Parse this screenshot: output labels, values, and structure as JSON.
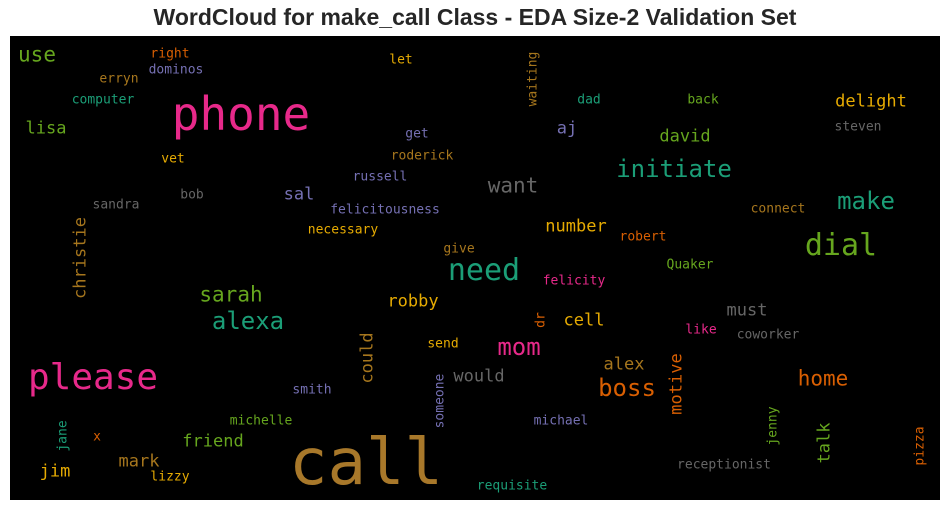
{
  "title": "WordCloud for make_call Class - EDA Size-2 Validation Set",
  "chart_data": {
    "type": "wordcloud",
    "background": "#000000",
    "words": [
      {
        "text": "call",
        "color": "#a8782a"
      },
      {
        "text": "phone",
        "color": "#e7298a"
      },
      {
        "text": "please",
        "color": "#e7298a"
      },
      {
        "text": "need",
        "color": "#1b9e77"
      },
      {
        "text": "dial",
        "color": "#66a61e"
      },
      {
        "text": "initiate",
        "color": "#1b9e77"
      },
      {
        "text": "mom",
        "color": "#e7298a"
      },
      {
        "text": "alexa",
        "color": "#1b9e77"
      },
      {
        "text": "boss",
        "color": "#d95f02"
      },
      {
        "text": "make",
        "color": "#1b9e77"
      },
      {
        "text": "sarah",
        "color": "#66a61e"
      },
      {
        "text": "home",
        "color": "#d95f02"
      },
      {
        "text": "want",
        "color": "#666666"
      },
      {
        "text": "use",
        "color": "#66a61e"
      },
      {
        "text": "delight",
        "color": "#e6ab02"
      },
      {
        "text": "david",
        "color": "#66a61e"
      },
      {
        "text": "christie",
        "color": "#a6761d"
      },
      {
        "text": "would",
        "color": "#666666"
      },
      {
        "text": "motive",
        "color": "#d95f02"
      },
      {
        "text": "could",
        "color": "#a6761d"
      },
      {
        "text": "talk",
        "color": "#66a61e"
      },
      {
        "text": "friend",
        "color": "#66a61e"
      },
      {
        "text": "mark",
        "color": "#a6761d"
      },
      {
        "text": "must",
        "color": "#666666"
      },
      {
        "text": "alex",
        "color": "#a6761d"
      },
      {
        "text": "cell",
        "color": "#e6ab02"
      },
      {
        "text": "robby",
        "color": "#e6ab02"
      },
      {
        "text": "lisa",
        "color": "#66a61e"
      },
      {
        "text": "aj",
        "color": "#7570b3"
      },
      {
        "text": "sal",
        "color": "#7570b3"
      },
      {
        "text": "jim",
        "color": "#e6ab02"
      },
      {
        "text": "number",
        "color": "#e6ab02"
      },
      {
        "text": "right",
        "color": "#d95f02"
      },
      {
        "text": "let",
        "color": "#e6ab02"
      },
      {
        "text": "erryn",
        "color": "#a6761d"
      },
      {
        "text": "dominos",
        "color": "#7570b3"
      },
      {
        "text": "computer",
        "color": "#1b9e77"
      },
      {
        "text": "waiting",
        "color": "#a6761d"
      },
      {
        "text": "dad",
        "color": "#1b9e77"
      },
      {
        "text": "back",
        "color": "#66a61e"
      },
      {
        "text": "get",
        "color": "#7570b3"
      },
      {
        "text": "steven",
        "color": "#666666"
      },
      {
        "text": "roderick",
        "color": "#a6761d"
      },
      {
        "text": "vet",
        "color": "#e6ab02"
      },
      {
        "text": "russell",
        "color": "#7570b3"
      },
      {
        "text": "bob",
        "color": "#666666"
      },
      {
        "text": "sandra",
        "color": "#666666"
      },
      {
        "text": "felicitousness",
        "color": "#7570b3"
      },
      {
        "text": "connect",
        "color": "#a6761d"
      },
      {
        "text": "necessary",
        "color": "#e6ab02"
      },
      {
        "text": "robert",
        "color": "#d95f02"
      },
      {
        "text": "give",
        "color": "#a6761d"
      },
      {
        "text": "Quaker",
        "color": "#66a61e"
      },
      {
        "text": "felicity",
        "color": "#e7298a"
      },
      {
        "text": "dr",
        "color": "#d95f02"
      },
      {
        "text": "like",
        "color": "#e7298a"
      },
      {
        "text": "coworker",
        "color": "#666666"
      },
      {
        "text": "send",
        "color": "#e6ab02"
      },
      {
        "text": "smith",
        "color": "#7570b3"
      },
      {
        "text": "someone",
        "color": "#7570b3"
      },
      {
        "text": "michelle",
        "color": "#66a61e"
      },
      {
        "text": "michael",
        "color": "#7570b3"
      },
      {
        "text": "jane",
        "color": "#1b9e77"
      },
      {
        "text": "x",
        "color": "#d95f02"
      },
      {
        "text": "jenny",
        "color": "#66a61e"
      },
      {
        "text": "receptionist",
        "color": "#666666"
      },
      {
        "text": "lizzy",
        "color": "#e6ab02"
      },
      {
        "text": "requisite",
        "color": "#1b9e77"
      },
      {
        "text": "pizza",
        "color": "#d95f02"
      }
    ]
  }
}
